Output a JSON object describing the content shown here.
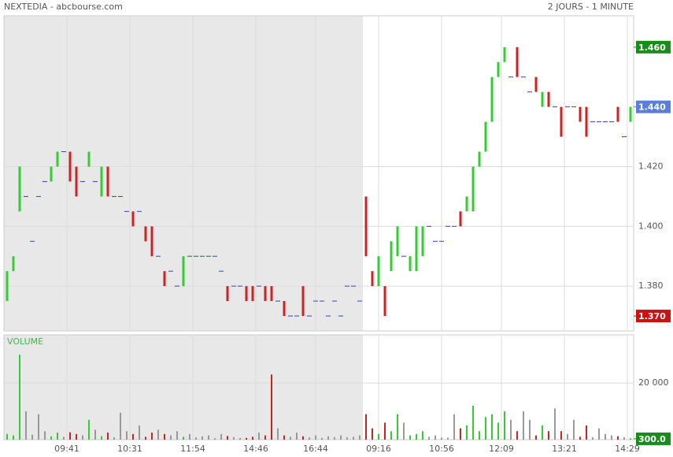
{
  "header": {
    "left": "NEXTEDIA - abcbourse.com",
    "right": "2 JOURS - 1 MINUTE"
  },
  "chart_data": [
    {
      "type": "candlestick",
      "up_color": "#33cc33",
      "down_color": "#cc2222",
      "flat_color": "#3344aa",
      "open": [
        1.375,
        1.385,
        1.405,
        1.41,
        1.395,
        1.41,
        1.415,
        1.415,
        1.42,
        1.425,
        1.425,
        1.42,
        1.415,
        1.42,
        1.415,
        1.41,
        1.42,
        1.41,
        1.41,
        1.405,
        1.405,
        1.405,
        1.4,
        1.4,
        1.39,
        1.385,
        1.385,
        1.38,
        1.38,
        1.39,
        1.39,
        1.39,
        1.39,
        1.39,
        1.385,
        1.38,
        1.38,
        1.38,
        1.38,
        1.38,
        1.38,
        1.38,
        1.38,
        1.375,
        1.375,
        1.37,
        1.37,
        1.38,
        1.37,
        1.375,
        1.375,
        1.37,
        1.375,
        1.37,
        1.38,
        1.38,
        1.375,
        1.41,
        1.385,
        1.38,
        1.38,
        1.385,
        1.39,
        1.39,
        1.385,
        1.385,
        1.39,
        1.4,
        1.395,
        1.395,
        1.4,
        1.4,
        1.405,
        1.405,
        1.405,
        1.42,
        1.425,
        1.435,
        1.45,
        1.455,
        1.45,
        1.46,
        1.45,
        1.445,
        1.45,
        1.44,
        1.445,
        1.44,
        1.44,
        1.44,
        1.44,
        1.44,
        1.44,
        1.435,
        1.435,
        1.435,
        1.435,
        1.44,
        1.43,
        1.435
      ],
      "close": [
        1.385,
        1.39,
        1.42,
        1.41,
        1.395,
        1.41,
        1.415,
        1.42,
        1.425,
        1.425,
        1.415,
        1.41,
        1.415,
        1.425,
        1.415,
        1.42,
        1.41,
        1.41,
        1.41,
        1.405,
        1.4,
        1.405,
        1.395,
        1.39,
        1.39,
        1.38,
        1.385,
        1.38,
        1.39,
        1.39,
        1.39,
        1.39,
        1.39,
        1.39,
        1.385,
        1.375,
        1.38,
        1.38,
        1.375,
        1.375,
        1.38,
        1.375,
        1.375,
        1.375,
        1.37,
        1.37,
        1.37,
        1.37,
        1.37,
        1.375,
        1.375,
        1.37,
        1.375,
        1.37,
        1.38,
        1.38,
        1.375,
        1.39,
        1.38,
        1.39,
        1.37,
        1.395,
        1.4,
        1.39,
        1.39,
        1.4,
        1.4,
        1.4,
        1.395,
        1.395,
        1.4,
        1.4,
        1.4,
        1.41,
        1.42,
        1.425,
        1.435,
        1.45,
        1.455,
        1.46,
        1.45,
        1.45,
        1.45,
        1.445,
        1.445,
        1.445,
        1.44,
        1.44,
        1.43,
        1.44,
        1.44,
        1.435,
        1.43,
        1.435,
        1.435,
        1.435,
        1.435,
        1.435,
        1.43,
        1.44
      ],
      "xlim": [
        0,
        100
      ],
      "ylim": [
        1.365,
        1.4705
      ],
      "yticks": [
        {
          "value": 1.46,
          "label": "1.460",
          "box": "#1a8c1a"
        },
        {
          "value": 1.44,
          "label": "1.440",
          "box": "#5b7fd6"
        },
        {
          "value": 1.42,
          "label": "1.420"
        },
        {
          "value": 1.4,
          "label": "1.400"
        },
        {
          "value": 1.38,
          "label": "1.380"
        },
        {
          "value": 1.37,
          "label": "1.370",
          "box": "#cc1111"
        }
      ],
      "grid": true
    },
    {
      "type": "bar",
      "title": "VOLUME",
      "values": [
        2000,
        1500,
        30000,
        10000,
        1800,
        9000,
        3000,
        1200,
        2500,
        1000,
        2600,
        2000,
        1500,
        7000,
        3500,
        1200,
        2500,
        800,
        9500,
        3000,
        2000,
        5000,
        1000,
        2500,
        3500,
        2000,
        1500,
        3000,
        1000,
        2000,
        800,
        1200,
        1500,
        500,
        2000,
        1300,
        900,
        600,
        600,
        1000,
        2500,
        1500,
        23000,
        4000,
        1500,
        1000,
        2500,
        1200,
        800,
        1500,
        600,
        1200,
        900,
        1500,
        800,
        1000,
        1500,
        9000,
        4000,
        2000,
        6000,
        3000,
        9000,
        6000,
        1500,
        2000,
        3000,
        1000,
        1500,
        700,
        700,
        9000,
        4000,
        5000,
        12000,
        3000,
        8000,
        9000,
        6000,
        10000,
        7000,
        3000,
        10000,
        7000,
        1500,
        5000,
        3000,
        11000,
        3000,
        2000,
        7000,
        1000,
        5000,
        800,
        4000,
        2000,
        1500,
        1200,
        800,
        500
      ],
      "xlim": [
        0,
        100
      ],
      "ylim": [
        0,
        37000
      ],
      "yticks": [
        {
          "value": 20000,
          "label": "20 000"
        },
        {
          "value": 300,
          "label": "300.0",
          "box": "#1a8c1a"
        }
      ],
      "xticks": [
        {
          "value": 10,
          "label": "09:41"
        },
        {
          "value": 20,
          "label": "10:31"
        },
        {
          "value": 30,
          "label": "11:54"
        },
        {
          "value": 40,
          "label": "14:46"
        },
        {
          "value": 49.5,
          "label": "16:44"
        },
        {
          "value": 59.5,
          "label": "09:16"
        },
        {
          "value": 69.5,
          "label": "10:56"
        },
        {
          "value": 79,
          "label": "12:09"
        },
        {
          "value": 89,
          "label": "13:21"
        },
        {
          "value": 99,
          "label": "14:29"
        }
      ],
      "grid": true
    }
  ]
}
